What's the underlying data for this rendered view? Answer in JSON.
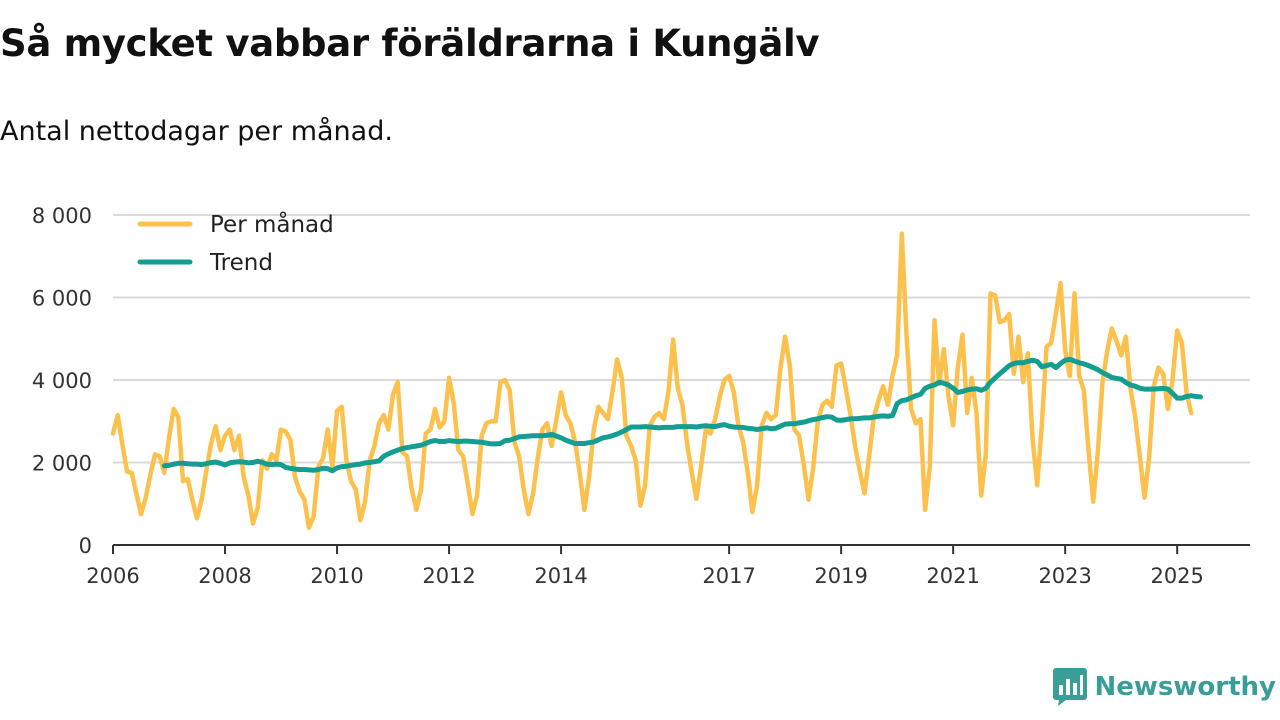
{
  "header": {
    "title": "Så mycket vabbar föräldrarna i Kungälv",
    "subtitle": "Antal nettodagar per månad."
  },
  "brand": {
    "name": "Newsworthy",
    "color": "#3a9e98"
  },
  "colors": {
    "monthly": "#fcc14d",
    "trend": "#149e92",
    "grid": "#d9d9d9",
    "axis": "#333333"
  },
  "chart_data": {
    "type": "line",
    "title": "Så mycket vabbar föräldrarna i Kungälv",
    "subtitle": "Antal nettodagar per månad.",
    "xlabel": "",
    "ylabel": "",
    "ylim": [
      0,
      8000
    ],
    "xlim": [
      2006,
      2026.3
    ],
    "yticks": [
      0,
      2000,
      4000,
      6000,
      8000
    ],
    "ytick_labels": [
      "0",
      "2 000",
      "4 000",
      "6 000",
      "8 000"
    ],
    "xticks": [
      2006,
      2008,
      2010,
      2012,
      2014,
      2017,
      2019,
      2021,
      2023,
      2025
    ],
    "xtick_labels": [
      "2006",
      "2008",
      "2010",
      "2012",
      "2014",
      "2017",
      "2019",
      "2021",
      "2023",
      "2025"
    ],
    "grid": true,
    "legend_position": "top-left",
    "series": [
      {
        "name": "Per månad",
        "x_start": 2006,
        "step_months": 1,
        "values": [
          2700,
          3150,
          2450,
          1780,
          1750,
          1250,
          750,
          1150,
          1700,
          2200,
          2150,
          1750,
          2600,
          3300,
          3100,
          1550,
          1600,
          1100,
          650,
          1100,
          1800,
          2450,
          2880,
          2300,
          2650,
          2800,
          2300,
          2650,
          1650,
          1200,
          520,
          900,
          2050,
          1850,
          2200,
          2050,
          2800,
          2750,
          2550,
          1650,
          1300,
          1100,
          420,
          700,
          1900,
          2100,
          2800,
          1900,
          3250,
          3350,
          2050,
          1550,
          1350,
          600,
          1050,
          2050,
          2400,
          2950,
          3150,
          2800,
          3650,
          3950,
          2250,
          2150,
          1350,
          850,
          1350,
          2700,
          2800,
          3300,
          2850,
          3000,
          4050,
          3450,
          2300,
          2150,
          1500,
          750,
          1200,
          2650,
          2950,
          3000,
          3000,
          3950,
          4000,
          3750,
          2500,
          2150,
          1350,
          750,
          1250,
          2100,
          2800,
          2950,
          2400,
          3050,
          3700,
          3150,
          2950,
          2500,
          1750,
          850,
          1650,
          2800,
          3350,
          3200,
          3050,
          3700,
          4500,
          4050,
          2650,
          2400,
          2050,
          950,
          1450,
          2900,
          3100,
          3200,
          3050,
          3700,
          4980,
          3800,
          3400,
          2450,
          1750,
          1120,
          1900,
          2800,
          2700,
          3050,
          3600,
          4000,
          4100,
          3700,
          2900,
          2500,
          1750,
          800,
          1450,
          2900,
          3200,
          3050,
          3150,
          4300,
          5050,
          4350,
          2800,
          2650,
          1950,
          1100,
          1850,
          3000,
          3400,
          3500,
          3350,
          4350,
          4400,
          3800,
          3150,
          2400,
          1800,
          1250,
          2150,
          3100,
          3500,
          3850,
          3400,
          4100,
          4600,
          7550,
          5100,
          3300,
          2950,
          3050,
          850,
          1900,
          5450,
          3900,
          4750,
          3600,
          2900,
          4300,
          5100,
          3200,
          4050,
          3200,
          1200,
          2200,
          6100,
          6050,
          5400,
          5450,
          5600,
          4150,
          5050,
          3950,
          4650,
          2600,
          1450,
          2900,
          4800,
          4900,
          5600,
          6350,
          4700,
          4100,
          6100,
          4100,
          3750,
          2300,
          1050,
          2250,
          3950,
          4700,
          5250,
          4950,
          4600,
          5050,
          3800,
          3100,
          2150,
          1150,
          2150,
          3850,
          4300,
          4150,
          3300,
          4000,
          5200,
          4900,
          3700,
          3200
        ]
      },
      {
        "name": "Trend",
        "x_start": 2006.917,
        "step_months": 1,
        "values": [
          1920,
          1930,
          1960,
          1980,
          1980,
          1970,
          1960,
          1960,
          1950,
          1970,
          2000,
          2010,
          1980,
          1940,
          1990,
          2010,
          2020,
          2010,
          1990,
          2000,
          2030,
          2000,
          1960,
          1950,
          1960,
          1950,
          1880,
          1860,
          1840,
          1830,
          1830,
          1820,
          1810,
          1830,
          1860,
          1850,
          1800,
          1870,
          1900,
          1910,
          1930,
          1950,
          1960,
          1990,
          2000,
          2020,
          2040,
          2150,
          2210,
          2260,
          2300,
          2340,
          2360,
          2380,
          2400,
          2420,
          2460,
          2510,
          2530,
          2510,
          2510,
          2530,
          2520,
          2510,
          2520,
          2520,
          2510,
          2500,
          2490,
          2470,
          2450,
          2450,
          2460,
          2530,
          2540,
          2580,
          2620,
          2630,
          2640,
          2650,
          2650,
          2650,
          2660,
          2680,
          2640,
          2600,
          2540,
          2500,
          2460,
          2460,
          2460,
          2480,
          2500,
          2550,
          2600,
          2620,
          2650,
          2690,
          2740,
          2800,
          2860,
          2860,
          2860,
          2870,
          2860,
          2850,
          2840,
          2850,
          2850,
          2850,
          2870,
          2870,
          2870,
          2870,
          2860,
          2880,
          2890,
          2880,
          2870,
          2900,
          2920,
          2880,
          2860,
          2850,
          2850,
          2830,
          2820,
          2800,
          2820,
          2840,
          2820,
          2830,
          2880,
          2930,
          2940,
          2940,
          2960,
          2980,
          3010,
          3040,
          3060,
          3090,
          3110,
          3100,
          3030,
          3020,
          3040,
          3060,
          3060,
          3070,
          3080,
          3080,
          3100,
          3120,
          3130,
          3120,
          3140,
          3430,
          3500,
          3520,
          3570,
          3620,
          3650,
          3800,
          3850,
          3880,
          3950,
          3920,
          3880,
          3800,
          3700,
          3720,
          3760,
          3780,
          3790,
          3750,
          3800,
          3950,
          4050,
          4150,
          4250,
          4350,
          4400,
          4420,
          4420,
          4450,
          4480,
          4450,
          4320,
          4350,
          4380,
          4300,
          4400,
          4480,
          4500,
          4460,
          4420,
          4390,
          4350,
          4300,
          4250,
          4180,
          4120,
          4060,
          4040,
          4020,
          3940,
          3880,
          3850,
          3800,
          3780,
          3780,
          3780,
          3790,
          3800,
          3780,
          3680,
          3560,
          3560,
          3600,
          3620,
          3600,
          3590
        ]
      }
    ]
  }
}
